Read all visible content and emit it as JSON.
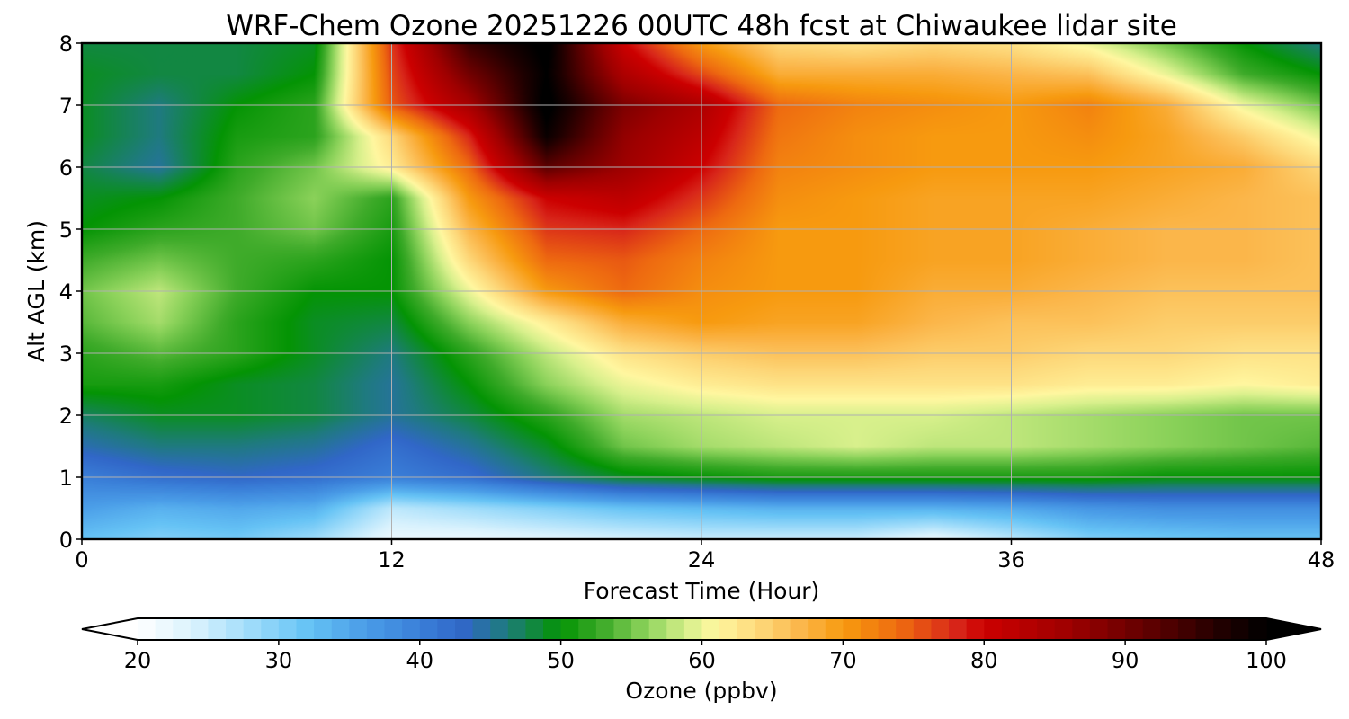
{
  "chart_data": {
    "type": "heatmap",
    "title": "WRF-Chem Ozone  20251226 00UTC 48h fcst at Chiwaukee lidar site",
    "xlabel": "Forecast Time (Hour)",
    "ylabel": "Alt AGL (km)",
    "xlim": [
      0,
      48
    ],
    "ylim": [
      0,
      8
    ],
    "xticks": [
      "0",
      "12",
      "24",
      "36",
      "48"
    ],
    "yticks": [
      "0",
      "1",
      "2",
      "3",
      "4",
      "5",
      "6",
      "7",
      "8"
    ],
    "grid": true,
    "x_hours": [
      0,
      3,
      6,
      9,
      12,
      15,
      18,
      21,
      24,
      27,
      30,
      33,
      36,
      39,
      42,
      45,
      48
    ],
    "y_km": [
      0,
      0.5,
      1,
      1.5,
      2,
      2.5,
      3,
      3.5,
      4,
      4.5,
      5,
      5.5,
      6,
      6.5,
      7,
      7.5,
      8
    ],
    "ozone_ppbv_rows_by_altitude": [
      [
        32,
        30,
        31,
        28,
        22,
        22,
        23,
        24,
        25,
        25,
        25,
        22,
        26,
        30,
        31,
        32,
        32
      ],
      [
        36,
        34,
        35,
        34,
        26,
        28,
        30,
        32,
        33,
        34,
        34,
        34,
        35,
        37,
        38,
        38,
        38
      ],
      [
        40,
        42,
        43,
        42,
        40,
        42,
        46,
        49,
        50,
        51,
        51,
        51,
        51,
        51,
        50,
        50,
        50
      ],
      [
        44,
        46,
        46,
        45,
        42,
        45,
        49,
        55,
        57,
        58,
        59,
        58,
        58,
        57,
        56,
        55,
        54
      ],
      [
        47,
        49,
        49,
        48,
        45,
        48,
        52,
        57,
        58,
        59,
        59,
        59,
        58,
        57,
        56,
        55,
        55
      ],
      [
        51,
        51,
        49,
        48,
        45,
        50,
        56,
        60,
        62,
        63,
        63,
        63,
        63,
        62,
        62,
        61,
        62
      ],
      [
        52,
        54,
        52,
        49,
        46,
        52,
        58,
        63,
        65,
        66,
        66,
        65,
        65,
        64,
        64,
        63,
        63
      ],
      [
        54,
        57,
        52,
        49,
        48,
        56,
        62,
        68,
        70,
        69,
        69,
        67,
        66,
        66,
        65,
        65,
        65
      ],
      [
        55,
        58,
        53,
        50,
        50,
        60,
        70,
        74,
        71,
        70,
        70,
        68,
        68,
        67,
        66,
        66,
        66
      ],
      [
        53,
        55,
        53,
        52,
        50,
        64,
        74,
        75,
        72,
        70,
        70,
        69,
        69,
        68,
        67,
        67,
        66
      ],
      [
        50,
        52,
        53,
        55,
        51,
        67,
        77,
        78,
        74,
        70,
        70,
        69,
        69,
        68,
        67,
        67,
        66
      ],
      [
        49,
        50,
        53,
        56,
        52,
        70,
        80,
        82,
        77,
        71,
        70,
        69,
        69,
        69,
        68,
        67,
        66
      ],
      [
        48,
        45,
        52,
        55,
        62,
        74,
        92,
        86,
        80,
        72,
        71,
        70,
        70,
        70,
        69,
        68,
        64
      ],
      [
        49,
        46,
        51,
        52,
        64,
        78,
        99,
        87,
        82,
        73,
        71,
        70,
        70,
        71,
        69,
        65,
        60
      ],
      [
        49,
        46,
        50,
        52,
        75,
        85,
        101,
        89,
        84,
        74,
        72,
        71,
        70,
        72,
        68,
        60,
        55
      ],
      [
        49,
        48,
        48,
        50,
        76,
        90,
        100,
        84,
        76,
        68,
        68,
        68,
        67,
        66,
        60,
        53,
        50
      ],
      [
        48,
        48,
        48,
        49,
        77,
        95,
        101,
        80,
        70,
        64,
        63,
        64,
        63,
        60,
        55,
        50,
        46
      ]
    ],
    "colorbar": {
      "label": "Ozone  (ppbv)",
      "min": 20,
      "max": 100,
      "ticks": [
        "20",
        "30",
        "40",
        "50",
        "60",
        "70",
        "80",
        "90",
        "100"
      ],
      "extend": "both",
      "color_stops": [
        {
          "value": 20,
          "color": "#ffffff"
        },
        {
          "value": 24,
          "color": "#d9f2fd"
        },
        {
          "value": 28,
          "color": "#9fdcfa"
        },
        {
          "value": 32,
          "color": "#66c3f5"
        },
        {
          "value": 36,
          "color": "#4b9ee8"
        },
        {
          "value": 40,
          "color": "#3a7fd8"
        },
        {
          "value": 43,
          "color": "#3167c8"
        },
        {
          "value": 46,
          "color": "#1f7a80"
        },
        {
          "value": 50,
          "color": "#049404"
        },
        {
          "value": 53,
          "color": "#3fab2a"
        },
        {
          "value": 56,
          "color": "#8bd25a"
        },
        {
          "value": 59,
          "color": "#d8f08c"
        },
        {
          "value": 61,
          "color": "#fff7a0"
        },
        {
          "value": 64,
          "color": "#fdd87a"
        },
        {
          "value": 67,
          "color": "#fbb64a"
        },
        {
          "value": 70,
          "color": "#f79a0f"
        },
        {
          "value": 74,
          "color": "#ee6a10"
        },
        {
          "value": 78,
          "color": "#d8261a"
        },
        {
          "value": 80,
          "color": "#cc0000"
        },
        {
          "value": 86,
          "color": "#9e0000"
        },
        {
          "value": 92,
          "color": "#5c0000"
        },
        {
          "value": 97,
          "color": "#1e0000"
        },
        {
          "value": 100,
          "color": "#000000"
        }
      ]
    }
  }
}
